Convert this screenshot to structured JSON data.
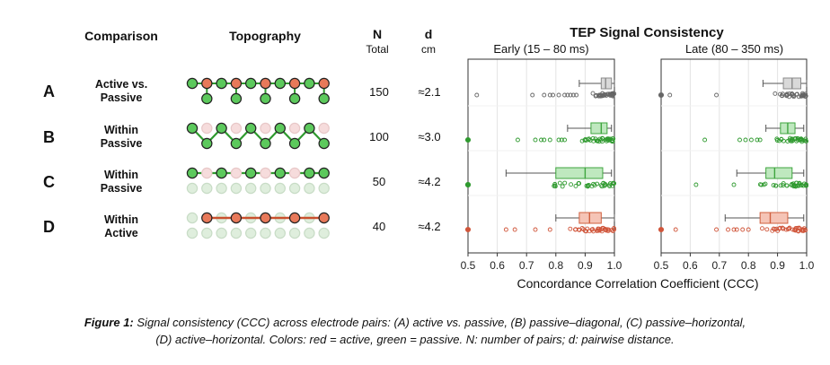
{
  "headers": {
    "comparison": "Comparison",
    "topography": "Topography",
    "n": "N",
    "n_sub": "Total",
    "d": "d",
    "d_sub": "cm"
  },
  "rows": [
    {
      "letter": "A",
      "label_line1": "Active vs.",
      "label_line2": "Passive",
      "n": "150",
      "d": "≈2.1"
    },
    {
      "letter": "B",
      "label_line1": "Within",
      "label_line2": "Passive",
      "n": "100",
      "d": "≈3.0"
    },
    {
      "letter": "C",
      "label_line1": "Within",
      "label_line2": "Passive",
      "n": "50",
      "d": "≈4.2"
    },
    {
      "letter": "D",
      "label_line1": "Within",
      "label_line2": "Active",
      "n": "40",
      "d": "≈4.2"
    }
  ],
  "colors": {
    "active": "#e8795a",
    "active_dark": "#c9512e",
    "passive": "#5cc95c",
    "passive_dark": "#2e9a2e",
    "gray": "#9a9a9a"
  },
  "chart_data": {
    "type": "boxplot",
    "title": "TEP Signal Consistency",
    "xlabel": "Concordance Correlation Coefficient (CCC)",
    "xlim": [
      0.5,
      1.0
    ],
    "xticks": [
      "0.5",
      "0.6",
      "0.7",
      "0.8",
      "0.9",
      "1.0"
    ],
    "categories": [
      "A",
      "B",
      "C",
      "D"
    ],
    "panels": [
      {
        "name": "Early (15 – 80 ms)",
        "series": [
          {
            "category": "A",
            "whisker": [
              0.88,
              1.0
            ],
            "q1": 0.955,
            "median": 0.97,
            "q3": 0.99,
            "outliers": [
              0.53,
              0.72,
              0.76,
              0.78,
              0.79,
              0.81,
              0.83,
              0.84,
              0.85,
              0.86,
              0.87
            ]
          },
          {
            "category": "B",
            "whisker": [
              0.84,
              0.99
            ],
            "q1": 0.92,
            "median": 0.955,
            "q3": 0.975,
            "outliers": [
              0.5,
              0.67,
              0.73,
              0.75,
              0.76,
              0.78,
              0.81,
              0.82,
              0.83
            ]
          },
          {
            "category": "C",
            "whisker": [
              0.63,
              0.99
            ],
            "q1": 0.8,
            "median": 0.9,
            "q3": 0.96,
            "outliers": [
              0.5,
              0.5
            ]
          },
          {
            "category": "D",
            "whisker": [
              0.8,
              1.0
            ],
            "q1": 0.88,
            "median": 0.915,
            "q3": 0.955,
            "outliers": [
              0.5,
              0.63,
              0.66,
              0.73,
              0.78
            ]
          }
        ]
      },
      {
        "name": "Late (80 – 350 ms)",
        "series": [
          {
            "category": "A",
            "whisker": [
              0.85,
              1.0
            ],
            "q1": 0.92,
            "median": 0.95,
            "q3": 0.98,
            "outliers": [
              0.5,
              0.53,
              0.69
            ]
          },
          {
            "category": "B",
            "whisker": [
              0.86,
              0.99
            ],
            "q1": 0.91,
            "median": 0.935,
            "q3": 0.96,
            "outliers": [
              0.65,
              0.77,
              0.79,
              0.81,
              0.83,
              0.84
            ]
          },
          {
            "category": "C",
            "whisker": [
              0.76,
              0.99
            ],
            "q1": 0.86,
            "median": 0.89,
            "q3": 0.95,
            "outliers": [
              0.62,
              0.75
            ]
          },
          {
            "category": "D",
            "whisker": [
              0.72,
              0.99
            ],
            "q1": 0.84,
            "median": 0.875,
            "q3": 0.935,
            "outliers": [
              0.5,
              0.55,
              0.69,
              0.73,
              0.75,
              0.76,
              0.78,
              0.8
            ]
          }
        ]
      }
    ]
  },
  "caption": {
    "label": "Figure 1:",
    "line1": "Signal consistency (CCC) across electrode pairs: (A) active vs. passive, (B) passive–diagonal, (C) passive–horizontal,",
    "line2": "(D) active–horizontal. Colors: red = active, green = passive. N: number of pairs; d: pairwise distance."
  }
}
